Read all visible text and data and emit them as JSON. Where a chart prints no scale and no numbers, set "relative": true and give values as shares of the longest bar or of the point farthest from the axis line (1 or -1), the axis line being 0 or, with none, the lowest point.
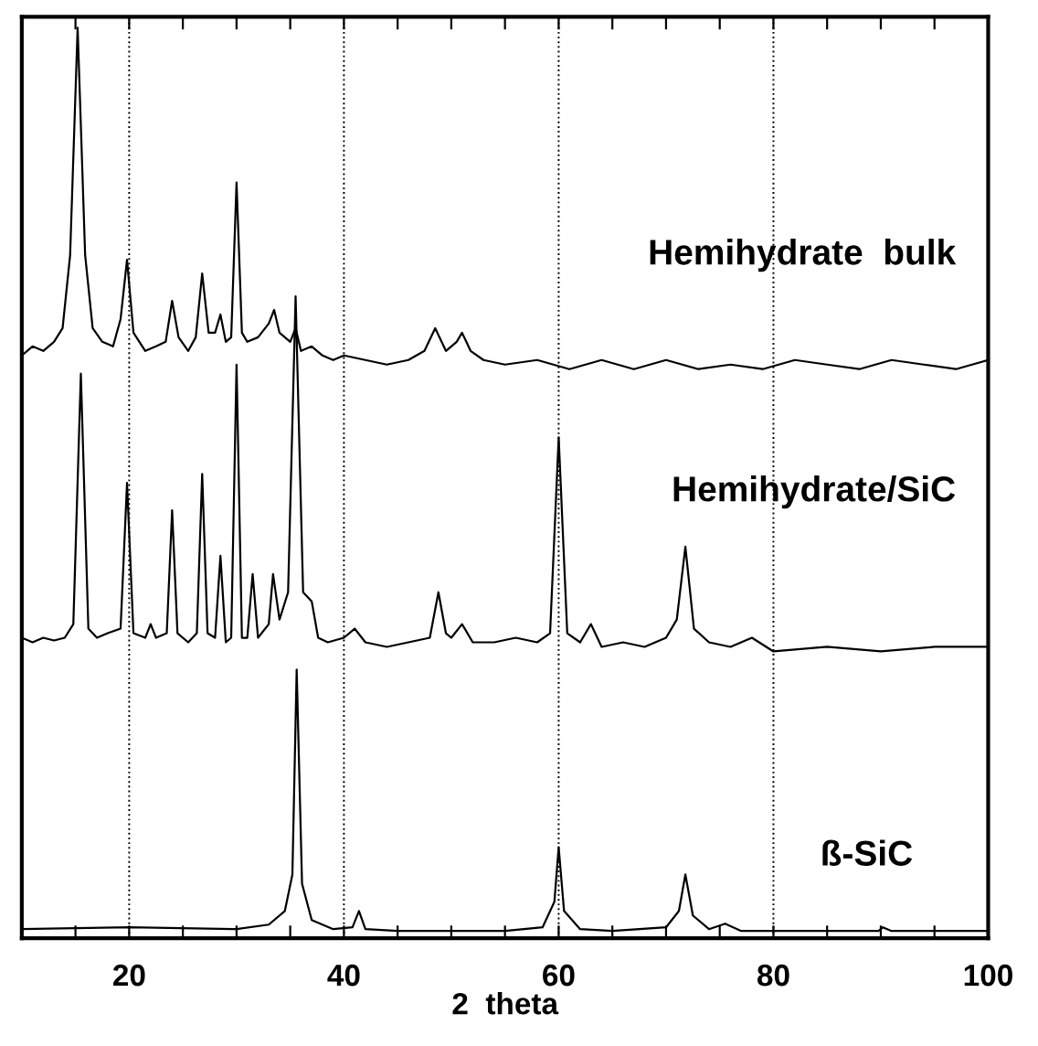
{
  "chart_data": {
    "type": "line",
    "relative": true,
    "xlabel": "2  theta",
    "xlim": [
      10,
      100
    ],
    "xticks": [
      {
        "value": 15,
        "label": null
      },
      20,
      {
        "value": 25,
        "label": null
      },
      {
        "value": 30,
        "label": null
      },
      {
        "value": 35,
        "label": null
      },
      40,
      {
        "value": 45,
        "label": null
      },
      {
        "value": 50,
        "label": null
      },
      {
        "value": 55,
        "label": null
      },
      60,
      {
        "value": 65,
        "label": null
      },
      {
        "value": 70,
        "label": null
      },
      {
        "value": 75,
        "label": null
      },
      80,
      {
        "value": 85,
        "label": null
      },
      {
        "value": 90,
        "label": null
      },
      {
        "value": 95,
        "label": null
      },
      100
    ],
    "grid": false,
    "legend": false,
    "marker": "none",
    "line_style": "solid",
    "ref_lines": [
      {
        "axis": "x",
        "value": 20,
        "line_style": "dotted",
        "color": "#000000"
      },
      {
        "axis": "x",
        "value": 40,
        "line_style": "dotted",
        "color": "#000000"
      },
      {
        "axis": "x",
        "value": 60,
        "line_style": "dotted",
        "color": "#000000"
      },
      {
        "axis": "x",
        "value": 80,
        "line_style": "dotted",
        "color": "#000000"
      }
    ],
    "series": [
      {
        "name": "Hemihydrate  bulk",
        "color": "#000000",
        "x": [
          10,
          11,
          12,
          13,
          13.8,
          14.5,
          15.2,
          15.9,
          16.6,
          17.5,
          18.5,
          19.2,
          19.8,
          20.4,
          21.5,
          22.5,
          23.4,
          24,
          24.6,
          25.5,
          26.2,
          26.8,
          27.4,
          28,
          28.5,
          29,
          29.5,
          30,
          30.5,
          31,
          32,
          33,
          33.5,
          34,
          35,
          35.5,
          36,
          37,
          38,
          39,
          40,
          42,
          44,
          46,
          47.5,
          48.5,
          49.5,
          50.5,
          51,
          51.8,
          53,
          55,
          58,
          61,
          64,
          67,
          70,
          73,
          76,
          79,
          82,
          85,
          88,
          91,
          94,
          97,
          100
        ],
        "values": [
          0.64,
          0.65,
          0.645,
          0.655,
          0.67,
          0.75,
          1.0,
          0.75,
          0.67,
          0.655,
          0.65,
          0.68,
          0.745,
          0.665,
          0.645,
          0.65,
          0.655,
          0.7,
          0.66,
          0.645,
          0.66,
          0.73,
          0.665,
          0.665,
          0.685,
          0.655,
          0.66,
          0.83,
          0.665,
          0.655,
          0.66,
          0.675,
          0.69,
          0.665,
          0.655,
          0.67,
          0.645,
          0.65,
          0.64,
          0.635,
          0.64,
          0.635,
          0.63,
          0.635,
          0.645,
          0.67,
          0.645,
          0.655,
          0.665,
          0.645,
          0.635,
          0.63,
          0.635,
          0.625,
          0.635,
          0.625,
          0.635,
          0.625,
          0.63,
          0.625,
          0.635,
          0.63,
          0.625,
          0.635,
          0.63,
          0.625,
          0.635
        ]
      },
      {
        "name": "Hemihydrate/SiC",
        "color": "#000000",
        "x": [
          10,
          11,
          12,
          13,
          14,
          14.8,
          15.5,
          16.2,
          17,
          18,
          19.2,
          19.8,
          20.4,
          21.5,
          22,
          22.5,
          23.5,
          24,
          24.5,
          25.5,
          26.3,
          26.8,
          27.3,
          28,
          28.5,
          29,
          29.5,
          30,
          30.5,
          31,
          31.5,
          32,
          33,
          33.4,
          34,
          34.8,
          35.5,
          36.2,
          37,
          37.6,
          38.5,
          40,
          41,
          42,
          44,
          46,
          48,
          48.8,
          49.5,
          50,
          51,
          52,
          54,
          56,
          58,
          59.2,
          60,
          60.8,
          62,
          63,
          64,
          66,
          68,
          70,
          71,
          71.8,
          72.6,
          74,
          76,
          78,
          80,
          85,
          90,
          95,
          100
        ],
        "values": [
          0.33,
          0.325,
          0.33,
          0.327,
          0.33,
          0.345,
          0.62,
          0.34,
          0.33,
          0.335,
          0.34,
          0.5,
          0.335,
          0.33,
          0.345,
          0.33,
          0.335,
          0.47,
          0.335,
          0.325,
          0.335,
          0.51,
          0.335,
          0.33,
          0.42,
          0.325,
          0.33,
          0.63,
          0.33,
          0.33,
          0.4,
          0.33,
          0.345,
          0.4,
          0.35,
          0.38,
          0.705,
          0.38,
          0.37,
          0.33,
          0.325,
          0.33,
          0.34,
          0.325,
          0.32,
          0.325,
          0.33,
          0.38,
          0.335,
          0.33,
          0.345,
          0.325,
          0.325,
          0.33,
          0.325,
          0.335,
          0.55,
          0.335,
          0.325,
          0.345,
          0.32,
          0.325,
          0.32,
          0.33,
          0.35,
          0.43,
          0.34,
          0.325,
          0.32,
          0.33,
          0.315,
          0.32,
          0.315,
          0.32,
          0.32
        ]
      },
      {
        "name": "ß-SiC",
        "color": "#000000",
        "x": [
          10,
          20,
          30,
          33,
          34.5,
          35.2,
          35.6,
          36.1,
          37,
          39,
          40.8,
          41.4,
          42,
          45,
          50,
          55,
          58.5,
          59.6,
          60,
          60.5,
          62,
          65,
          70,
          71.2,
          71.8,
          72.5,
          74,
          75.5,
          77,
          80,
          85,
          89.8,
          90.2,
          91,
          95,
          100
        ],
        "values": [
          0.01,
          0.012,
          0.01,
          0.015,
          0.03,
          0.07,
          0.295,
          0.06,
          0.02,
          0.01,
          0.012,
          0.03,
          0.01,
          0.008,
          0.008,
          0.008,
          0.012,
          0.04,
          0.1,
          0.03,
          0.01,
          0.008,
          0.012,
          0.03,
          0.07,
          0.025,
          0.01,
          0.016,
          0.008,
          0.008,
          0.008,
          0.008,
          0.012,
          0.008,
          0.008,
          0.008
        ]
      }
    ]
  }
}
